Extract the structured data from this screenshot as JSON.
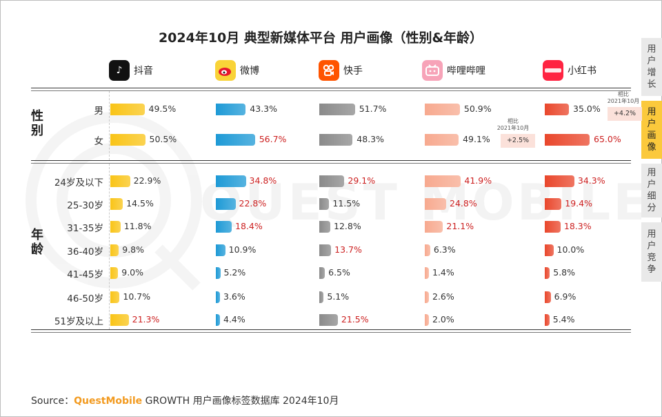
{
  "title": "2024年10月 典型新媒体平台 用户画像（性别&年龄）",
  "side_tabs": [
    {
      "label": "用户增长",
      "active": false
    },
    {
      "label": "用户画像",
      "active": true
    },
    {
      "label": "用户细分",
      "active": false
    },
    {
      "label": "用户竞争",
      "active": false
    }
  ],
  "section_labels": {
    "gender": "性别",
    "age": "年龄"
  },
  "source": {
    "prefix": "Source：",
    "brand": "QuestMobile",
    "rest": " GROWTH 用户画像标签数据库 2024年10月"
  },
  "watermark": "QUEST MOBILE",
  "platform_icons": [
    "douyin-icon",
    "weibo-icon",
    "kuaishou-icon",
    "bilibili-icon",
    "xiaohongshu-icon"
  ],
  "chart_data": {
    "type": "bar",
    "platforms": [
      "抖音",
      "微博",
      "快手",
      "哔哩哔哩",
      "小红书"
    ],
    "platform_colors": [
      "#f9c417",
      "#1e9ad6",
      "#8a8a8a",
      "#f7a98f",
      "#e9472c"
    ],
    "highlight_color": "#cc1f1f",
    "gender": {
      "categories": [
        "男",
        "女"
      ],
      "values": [
        [
          49.5,
          43.3,
          51.7,
          50.9,
          35.0
        ],
        [
          50.5,
          56.7,
          48.3,
          49.1,
          65.0
        ]
      ],
      "highlight": [
        [
          false,
          false,
          false,
          false,
          false
        ],
        [
          false,
          true,
          false,
          false,
          true
        ]
      ]
    },
    "age": {
      "categories": [
        "24岁及以下",
        "25-30岁",
        "31-35岁",
        "36-40岁",
        "41-45岁",
        "46-50岁",
        "51岁及以上"
      ],
      "values": [
        [
          22.9,
          34.8,
          29.1,
          41.9,
          34.3
        ],
        [
          14.5,
          22.8,
          11.5,
          24.8,
          19.4
        ],
        [
          11.8,
          18.4,
          12.8,
          21.1,
          18.3
        ],
        [
          9.8,
          10.9,
          13.7,
          6.3,
          10.0
        ],
        [
          9.0,
          5.2,
          6.5,
          1.4,
          5.8
        ],
        [
          10.7,
          3.6,
          5.1,
          2.6,
          6.9
        ],
        [
          21.3,
          4.4,
          21.5,
          2.0,
          5.4
        ]
      ],
      "highlight": [
        [
          false,
          true,
          true,
          true,
          true
        ],
        [
          false,
          true,
          false,
          true,
          true
        ],
        [
          false,
          true,
          false,
          true,
          true
        ],
        [
          false,
          false,
          true,
          false,
          false
        ],
        [
          false,
          false,
          false,
          false,
          false
        ],
        [
          false,
          false,
          false,
          false,
          false
        ],
        [
          true,
          false,
          true,
          false,
          false
        ]
      ]
    },
    "annotations": [
      {
        "label": "相比\n2021年10月",
        "value": "+2.5%",
        "platform": "哔哩哔哩",
        "row": "女"
      },
      {
        "label": "相比\n2021年10月",
        "value": "+4.2%",
        "platform": "小红书",
        "row": "男"
      }
    ]
  }
}
